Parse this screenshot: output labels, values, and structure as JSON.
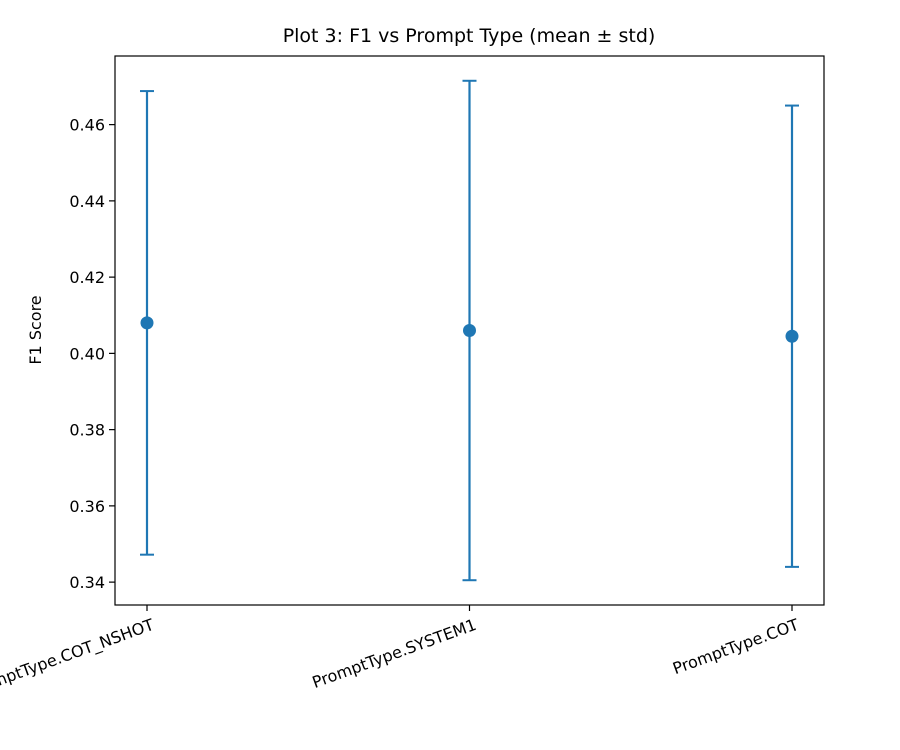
{
  "chart_data": {
    "type": "scatter",
    "title": "Plot 3: F1 vs Prompt Type (mean ± std)",
    "xlabel": "",
    "ylabel": "F1 Score",
    "categories": [
      "PromptType.COT_NSHOT",
      "PromptType.SYSTEM1",
      "PromptType.COT"
    ],
    "means": [
      0.408,
      0.406,
      0.4045
    ],
    "stds": [
      0.0608,
      0.0655,
      0.0605
    ],
    "ylim": [
      0.334,
      0.478
    ],
    "yticks": [
      "0.34",
      "0.36",
      "0.38",
      "0.40",
      "0.42",
      "0.44",
      "0.46"
    ],
    "x_tick_rotation_deg": -20,
    "grid": false,
    "legend": "none",
    "color": "#1f77b4"
  }
}
